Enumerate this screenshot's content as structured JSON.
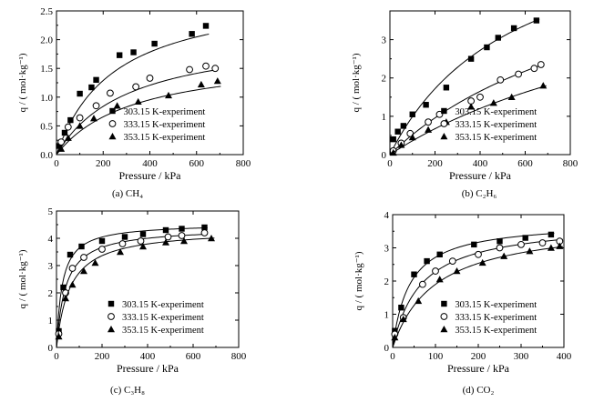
{
  "page": {
    "background": "#ffffff",
    "ink": "#000000"
  },
  "chart_data": [
    {
      "type": "scatter",
      "caption": "(a) CH₄",
      "xlabel": "Pressure / kPa",
      "ylabel": "q / ( mol·kg⁻¹)",
      "xlim": [
        0,
        800
      ],
      "ylim": [
        0,
        2.5
      ],
      "xticks": [
        0,
        200,
        400,
        600,
        800
      ],
      "yticks": [
        0.0,
        0.5,
        1.0,
        1.5,
        2.0,
        2.5
      ],
      "ytick_decimals": 1,
      "legend_position": "lower-right",
      "series": [
        {
          "name": "303.15 K-experiment",
          "marker": "square",
          "x": [
            10,
            35,
            60,
            100,
            150,
            170,
            270,
            330,
            420,
            580,
            640
          ],
          "y": [
            0.15,
            0.38,
            0.6,
            1.06,
            1.17,
            1.3,
            1.73,
            1.78,
            1.93,
            2.1,
            2.24
          ],
          "fit": {
            "qm": 2.9,
            "b": 0.004
          }
        },
        {
          "name": "333.15 K-experiment",
          "marker": "circle",
          "x": [
            20,
            50,
            100,
            170,
            230,
            340,
            400,
            570,
            640,
            680
          ],
          "y": [
            0.22,
            0.48,
            0.64,
            0.85,
            1.07,
            1.18,
            1.33,
            1.48,
            1.54,
            1.5
          ],
          "fit": {
            "qm": 2.15,
            "b": 0.0032
          }
        },
        {
          "name": "353.15 K-experiment",
          "marker": "triangle",
          "x": [
            20,
            50,
            100,
            160,
            260,
            350,
            480,
            620,
            690
          ],
          "y": [
            0.1,
            0.29,
            0.5,
            0.63,
            0.85,
            0.92,
            1.03,
            1.22,
            1.28
          ],
          "fit": {
            "qm": 1.75,
            "b": 0.003
          }
        }
      ]
    },
    {
      "type": "scatter",
      "caption": "(b) C₂H₆",
      "xlabel": "Pressure / kPa",
      "ylabel": "q / ( mol·kg⁻¹)",
      "xlim": [
        0,
        800
      ],
      "ylim": [
        0,
        3.75
      ],
      "xticks": [
        0,
        200,
        400,
        600,
        800
      ],
      "yticks": [
        0,
        1,
        2,
        3
      ],
      "ytick_decimals": 0,
      "legend_position": "lower-right",
      "series": [
        {
          "name": "303.15 K-experiment",
          "marker": "square",
          "x": [
            15,
            35,
            60,
            100,
            160,
            250,
            360,
            430,
            480,
            550,
            650
          ],
          "y": [
            0.4,
            0.6,
            0.75,
            1.05,
            1.3,
            1.75,
            2.5,
            2.8,
            3.05,
            3.3,
            3.5
          ],
          "fit": {
            "qm": 6.5,
            "b": 0.0018
          }
        },
        {
          "name": "333.15 K-experiment",
          "marker": "circle",
          "x": [
            15,
            50,
            90,
            170,
            220,
            360,
            400,
            490,
            570,
            640,
            670
          ],
          "y": [
            0.1,
            0.3,
            0.55,
            0.85,
            1.05,
            1.4,
            1.5,
            1.95,
            2.1,
            2.25,
            2.35
          ],
          "fit": {
            "qm": 6.0,
            "b": 0.00095
          }
        },
        {
          "name": "353.15 K-experiment",
          "marker": "triangle",
          "x": [
            15,
            50,
            100,
            170,
            250,
            360,
            460,
            540,
            680
          ],
          "y": [
            0.05,
            0.25,
            0.45,
            0.65,
            0.85,
            1.25,
            1.35,
            1.5,
            1.8
          ],
          "fit": {
            "qm": 5.5,
            "b": 0.0007
          }
        }
      ]
    },
    {
      "type": "scatter",
      "caption": "(c) C₃H₈",
      "xlabel": "Pressure / kPa",
      "ylabel": "q / ( mol·kg⁻¹)",
      "xlim": [
        0,
        800
      ],
      "ylim": [
        0,
        5
      ],
      "xticks": [
        0,
        200,
        400,
        600,
        800
      ],
      "yticks": [
        0,
        1,
        2,
        3,
        4,
        5
      ],
      "ytick_decimals": 0,
      "legend_position": "lower-right",
      "series": [
        {
          "name": "303.15 K-experiment",
          "marker": "square",
          "x": [
            10,
            30,
            60,
            110,
            200,
            300,
            380,
            480,
            550,
            650
          ],
          "y": [
            0.6,
            2.2,
            3.4,
            3.7,
            3.9,
            4.05,
            4.15,
            4.3,
            4.35,
            4.4
          ],
          "fit": {
            "qm": 4.55,
            "b": 0.04
          }
        },
        {
          "name": "333.15 K-experiment",
          "marker": "circle",
          "x": [
            10,
            40,
            70,
            120,
            200,
            290,
            370,
            490,
            550,
            650
          ],
          "y": [
            0.5,
            2.0,
            2.9,
            3.3,
            3.6,
            3.8,
            3.9,
            4.05,
            4.1,
            4.2
          ],
          "fit": {
            "qm": 4.4,
            "b": 0.025
          }
        },
        {
          "name": "353.15 K-experiment",
          "marker": "triangle",
          "x": [
            10,
            40,
            70,
            120,
            170,
            280,
            380,
            480,
            560,
            680
          ],
          "y": [
            0.4,
            1.8,
            2.3,
            2.8,
            3.1,
            3.5,
            3.7,
            3.85,
            3.9,
            4.0
          ],
          "fit": {
            "qm": 4.35,
            "b": 0.017
          }
        }
      ]
    },
    {
      "type": "scatter",
      "caption": "(d) CO₂",
      "xlabel": "Pressure / kPa",
      "ylabel": "q / ( mol·kg⁻¹)",
      "xlim": [
        0,
        400
      ],
      "ylim": [
        0,
        4
      ],
      "xticks": [
        0,
        100,
        200,
        300,
        400
      ],
      "yticks": [
        0,
        1,
        2,
        3,
        4
      ],
      "ytick_decimals": 0,
      "legend_position": "lower-right",
      "series": [
        {
          "name": "303.15 K-experiment",
          "marker": "square",
          "x": [
            5,
            20,
            50,
            80,
            110,
            190,
            250,
            310,
            370
          ],
          "y": [
            0.5,
            1.2,
            2.2,
            2.6,
            2.8,
            3.1,
            3.2,
            3.3,
            3.4
          ],
          "fit": {
            "qm": 3.8,
            "b": 0.025
          }
        },
        {
          "name": "333.15 K-experiment",
          "marker": "circle",
          "x": [
            5,
            25,
            70,
            100,
            140,
            200,
            250,
            300,
            350,
            390
          ],
          "y": [
            0.4,
            0.9,
            1.9,
            2.3,
            2.6,
            2.8,
            3.0,
            3.1,
            3.15,
            3.2
          ],
          "fit": {
            "qm": 3.8,
            "b": 0.015
          }
        },
        {
          "name": "353.15 K-experiment",
          "marker": "triangle",
          "x": [
            5,
            25,
            60,
            110,
            150,
            210,
            260,
            320,
            370,
            390
          ],
          "y": [
            0.3,
            0.85,
            1.4,
            2.05,
            2.3,
            2.55,
            2.75,
            2.9,
            3.0,
            3.05
          ],
          "fit": {
            "qm": 3.8,
            "b": 0.01
          }
        }
      ]
    }
  ]
}
